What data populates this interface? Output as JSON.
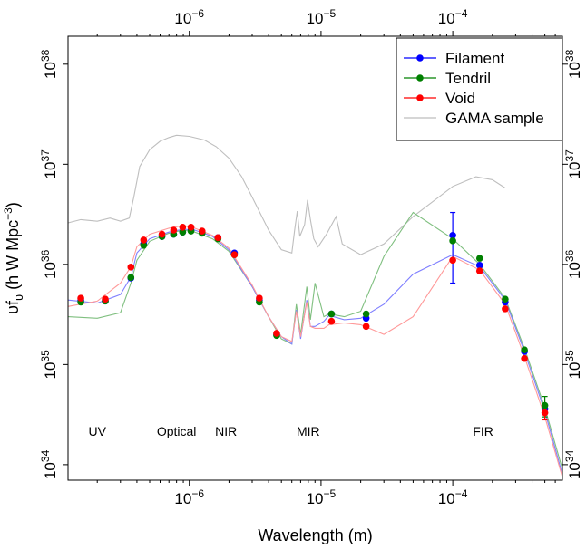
{
  "chart_data": {
    "type": "scatter",
    "title": "",
    "xlabel": "Wavelength (m)",
    "ylabel": "υf",
    "ylabel_sub": "υ",
    "ylabel_units": "(h W Mpc",
    "ylabel_units_exp": "−3",
    "ylabel_close": ")",
    "x_scale": "log",
    "y_scale": "log",
    "xlim": [
      1.2e-07,
      0.00068
    ],
    "ylim": [
      7e+33,
      1.9e+38
    ],
    "grid": false,
    "legend_position": "top-right",
    "x_ticks": [
      {
        "value": 1e-06,
        "base": "10",
        "exp": "−6"
      },
      {
        "value": 1e-05,
        "base": "10",
        "exp": "−5"
      },
      {
        "value": 0.0001,
        "base": "10",
        "exp": "−4"
      }
    ],
    "y_ticks": [
      {
        "value": 1e+34,
        "base": "10",
        "exp": "34"
      },
      {
        "value": 1e+35,
        "base": "10",
        "exp": "35"
      },
      {
        "value": 1e+36,
        "base": "10",
        "exp": "36"
      },
      {
        "value": 1e+37,
        "base": "10",
        "exp": "37"
      },
      {
        "value": 1e+38,
        "base": "10",
        "exp": "38"
      }
    ],
    "band_labels": [
      {
        "text": "UV",
        "x": 2e-07,
        "y": 1.95e+34
      },
      {
        "text": "Optical",
        "x": 8e-07,
        "y": 1.95e+34
      },
      {
        "text": "NIR",
        "x": 1.9e-06,
        "y": 1.95e+34
      },
      {
        "text": "MIR",
        "x": 8e-06,
        "y": 1.95e+34
      },
      {
        "text": "FIR",
        "x": 0.00017,
        "y": 1.95e+34
      }
    ],
    "series": [
      {
        "name": "Filament",
        "color": "#0000ff",
        "line_color": "#7f7fff",
        "points": [
          {
            "x": 1.5e-07,
            "y": 4.4e+35
          },
          {
            "x": 2.3e-07,
            "y": 4.3e+35
          },
          {
            "x": 3.6e-07,
            "y": 7.3e+35
          },
          {
            "x": 4.5e-07,
            "y": 1.6e+36
          },
          {
            "x": 6.2e-07,
            "y": 1.9e+36
          },
          {
            "x": 7.6e-07,
            "y": 2e+36
          },
          {
            "x": 8.9e-07,
            "y": 2.1e+36
          },
          {
            "x": 1.03e-06,
            "y": 2.2e+36
          },
          {
            "x": 1.25e-06,
            "y": 2.1e+36
          },
          {
            "x": 1.65e-06,
            "y": 1.85e+36
          },
          {
            "x": 2.2e-06,
            "y": 1.3e+36
          },
          {
            "x": 3.4e-06,
            "y": 4.4e+35
          },
          {
            "x": 4.6e-06,
            "y": 2e+35
          },
          {
            "x": 1.2e-05,
            "y": 3.2e+35
          },
          {
            "x": 2.2e-05,
            "y": 2.9e+35
          },
          {
            "x": 0.0001,
            "y": 1.95e+36,
            "err_lo": 6.5e+35,
            "err_hi": 3.3e+36
          },
          {
            "x": 0.00016,
            "y": 9.8e+35
          },
          {
            "x": 0.00025,
            "y": 4.2e+35
          },
          {
            "x": 0.00035,
            "y": 1.35e+35
          },
          {
            "x": 0.0005,
            "y": 3.6e+34
          }
        ],
        "line": [
          [
            1.2e-07,
            4.4e+35
          ],
          [
            2e-07,
            4.1e+35
          ],
          [
            3e-07,
            5e+35
          ],
          [
            3.6e-07,
            7.5e+35
          ],
          [
            4e-07,
            1.3e+36
          ],
          [
            5e-07,
            1.8e+36
          ],
          [
            7e-07,
            2.1e+36
          ],
          [
            9e-07,
            2.25e+36
          ],
          [
            1.1e-06,
            2.2e+36
          ],
          [
            1.5e-06,
            1.9e+36
          ],
          [
            2e-06,
            1.4e+36
          ],
          [
            3e-06,
            6e+35
          ],
          [
            4e-06,
            3e+35
          ],
          [
            5e-06,
            1.9e+35
          ],
          [
            6e-06,
            1.6e+35
          ],
          [
            6.5e-06,
            3.5e+35
          ],
          [
            7e-06,
            1.8e+35
          ],
          [
            7.8e-06,
            4.4e+35
          ],
          [
            8.3e-06,
            2.4e+35
          ],
          [
            9e-06,
            2.4e+35
          ],
          [
            1.05e-05,
            2.7e+35
          ],
          [
            1.15e-05,
            3.1e+35
          ],
          [
            1.5e-05,
            2.8e+35
          ],
          [
            2e-05,
            2.9e+35
          ],
          [
            3e-05,
            4e+35
          ],
          [
            5e-05,
            8e+35
          ],
          [
            0.0001,
            1.25e+36
          ],
          [
            0.00016,
            9.5e+35
          ],
          [
            0.00025,
            4.4e+35
          ],
          [
            0.00035,
            1.35e+35
          ],
          [
            0.0005,
            3.4e+34
          ],
          [
            0.00068,
            8e+33
          ]
        ]
      },
      {
        "name": "Tendril",
        "color": "#008000",
        "line_color": "#7fbf7f",
        "points": [
          {
            "x": 1.5e-07,
            "y": 4.2e+35
          },
          {
            "x": 2.3e-07,
            "y": 4.3e+35
          },
          {
            "x": 3.6e-07,
            "y": 7.4e+35
          },
          {
            "x": 4.5e-07,
            "y": 1.55e+36
          },
          {
            "x": 6.2e-07,
            "y": 1.9e+36
          },
          {
            "x": 7.6e-07,
            "y": 2e+36
          },
          {
            "x": 8.9e-07,
            "y": 2.1e+36
          },
          {
            "x": 1.03e-06,
            "y": 2.15e+36
          },
          {
            "x": 1.25e-06,
            "y": 2.05e+36
          },
          {
            "x": 1.65e-06,
            "y": 1.8e+36
          },
          {
            "x": 2.2e-06,
            "y": 1.25e+36
          },
          {
            "x": 3.4e-06,
            "y": 4.2e+35
          },
          {
            "x": 4.6e-06,
            "y": 1.95e+35
          },
          {
            "x": 1.2e-05,
            "y": 3.2e+35
          },
          {
            "x": 2.2e-05,
            "y": 3.2e+35
          },
          {
            "x": 0.0001,
            "y": 1.72e+36
          },
          {
            "x": 0.00016,
            "y": 1.15e+36
          },
          {
            "x": 0.00025,
            "y": 4.5e+35
          },
          {
            "x": 0.00035,
            "y": 1.4e+35
          },
          {
            "x": 0.0005,
            "y": 3.9e+34,
            "err_lo": 3e+34,
            "err_hi": 4.8e+34
          }
        ],
        "line": [
          [
            1.2e-07,
            3e+35
          ],
          [
            2e-07,
            2.9e+35
          ],
          [
            3e-07,
            3.3e+35
          ],
          [
            3.6e-07,
            6.5e+35
          ],
          [
            4e-07,
            1.1e+36
          ],
          [
            5e-07,
            1.7e+36
          ],
          [
            7e-07,
            2.05e+36
          ],
          [
            9e-07,
            2.2e+36
          ],
          [
            1.1e-06,
            2.1e+36
          ],
          [
            1.5e-06,
            1.8e+36
          ],
          [
            2e-06,
            1.35e+36
          ],
          [
            3e-06,
            6e+35
          ],
          [
            4e-06,
            3e+35
          ],
          [
            5e-06,
            1.8e+35
          ],
          [
            6e-06,
            1.6e+35
          ],
          [
            6.5e-06,
            4e+35
          ],
          [
            7e-06,
            2e+35
          ],
          [
            7.8e-06,
            6e+35
          ],
          [
            8.3e-06,
            2.8e+35
          ],
          [
            9e-06,
            6.5e+35
          ],
          [
            1.05e-05,
            3e+35
          ],
          [
            1.15e-05,
            3.2e+35
          ],
          [
            1.5e-05,
            3e+35
          ],
          [
            2e-05,
            3.4e+35
          ],
          [
            3e-05,
            1.2e+36
          ],
          [
            5e-05,
            3.3e+36
          ],
          [
            0.0001,
            1.8e+36
          ],
          [
            0.00016,
            1e+36
          ],
          [
            0.00025,
            4.6e+35
          ],
          [
            0.00035,
            1.45e+35
          ],
          [
            0.0005,
            3.7e+34
          ],
          [
            0.00068,
            9e+33
          ]
        ]
      },
      {
        "name": "Void",
        "color": "#ff0000",
        "line_color": "#ff9999",
        "points": [
          {
            "x": 1.5e-07,
            "y": 4.6e+35
          },
          {
            "x": 2.3e-07,
            "y": 4.5e+35
          },
          {
            "x": 3.6e-07,
            "y": 9.4e+35
          },
          {
            "x": 4.5e-07,
            "y": 1.75e+36
          },
          {
            "x": 6.2e-07,
            "y": 2e+36
          },
          {
            "x": 7.6e-07,
            "y": 2.2e+36
          },
          {
            "x": 8.9e-07,
            "y": 2.35e+36
          },
          {
            "x": 1.03e-06,
            "y": 2.35e+36
          },
          {
            "x": 1.25e-06,
            "y": 2.15e+36
          },
          {
            "x": 1.65e-06,
            "y": 1.85e+36
          },
          {
            "x": 2.2e-06,
            "y": 1.25e+36
          },
          {
            "x": 3.4e-06,
            "y": 4.6e+35
          },
          {
            "x": 4.6e-06,
            "y": 2.05e+35
          },
          {
            "x": 1.2e-05,
            "y": 2.7e+35
          },
          {
            "x": 2.2e-05,
            "y": 2.4e+35
          },
          {
            "x": 0.0001,
            "y": 1.1e+36
          },
          {
            "x": 0.00016,
            "y": 8.6e+35
          },
          {
            "x": 0.00025,
            "y": 3.6e+35
          },
          {
            "x": 0.00035,
            "y": 1.15e+35
          },
          {
            "x": 0.0005,
            "y": 3.3e+34,
            "err_lo": 2.8e+34,
            "err_hi": 3.9e+34
          }
        ],
        "line": [
          [
            1.2e-07,
            3.8e+35
          ],
          [
            2e-07,
            4.3e+35
          ],
          [
            3e-07,
            6.5e+35
          ],
          [
            3.6e-07,
            9.5e+35
          ],
          [
            4e-07,
            1.5e+36
          ],
          [
            5e-07,
            2e+36
          ],
          [
            7e-07,
            2.3e+36
          ],
          [
            9e-07,
            2.45e+36
          ],
          [
            1.1e-06,
            2.3e+36
          ],
          [
            1.5e-06,
            1.95e+36
          ],
          [
            2e-06,
            1.45e+36
          ],
          [
            3e-06,
            6.2e+35
          ],
          [
            4e-06,
            3e+35
          ],
          [
            5e-06,
            1.9e+35
          ],
          [
            6e-06,
            1.7e+35
          ],
          [
            6.5e-06,
            3.4e+35
          ],
          [
            7e-06,
            1.9e+35
          ],
          [
            7.8e-06,
            4.2e+35
          ],
          [
            8.3e-06,
            2.4e+35
          ],
          [
            9e-06,
            2.3e+35
          ],
          [
            1.05e-05,
            2.3e+35
          ],
          [
            1.15e-05,
            2.5e+35
          ],
          [
            1.5e-05,
            2.6e+35
          ],
          [
            2e-05,
            2.5e+35
          ],
          [
            3e-05,
            2e+35
          ],
          [
            5e-05,
            3e+35
          ],
          [
            0.0001,
            1.2e+36
          ],
          [
            0.00016,
            8.8e+35
          ],
          [
            0.00025,
            4e+35
          ],
          [
            0.00035,
            1.2e+35
          ],
          [
            0.0005,
            3e+34
          ],
          [
            0.00068,
            7.5e+33
          ]
        ]
      },
      {
        "name": "GAMA sample",
        "color": "#bebebe",
        "line_color": "#bebebe",
        "points": [],
        "line": [
          [
            1.2e-07,
            2.6e+36
          ],
          [
            1.5e-07,
            2.8e+36
          ],
          [
            2e-07,
            2.7e+36
          ],
          [
            2.5e-07,
            2.9e+36
          ],
          [
            3e-07,
            2.7e+36
          ],
          [
            3.5e-07,
            2.9e+36
          ],
          [
            3.8e-07,
            4.8e+36
          ],
          [
            4.2e-07,
            9.5e+36
          ],
          [
            5e-07,
            1.4e+37
          ],
          [
            6e-07,
            1.7e+37
          ],
          [
            7e-07,
            1.85e+37
          ],
          [
            8e-07,
            1.95e+37
          ],
          [
            1e-06,
            1.9e+37
          ],
          [
            1.3e-06,
            1.75e+37
          ],
          [
            1.6e-06,
            1.5e+37
          ],
          [
            2e-06,
            1.15e+37
          ],
          [
            2.5e-06,
            7.5e+36
          ],
          [
            3e-06,
            4.7e+36
          ],
          [
            4e-06,
            2.2e+36
          ],
          [
            5e-06,
            1.4e+36
          ],
          [
            6e-06,
            1.3e+36
          ],
          [
            6.3e-06,
            2.2e+36
          ],
          [
            6.6e-06,
            3.4e+36
          ],
          [
            6.9e-06,
            1.9e+36
          ],
          [
            7.5e-06,
            2.5e+36
          ],
          [
            7.9e-06,
            4.4e+36
          ],
          [
            8.3e-06,
            2.8e+36
          ],
          [
            8.8e-06,
            1.8e+36
          ],
          [
            9.5e-06,
            1.5e+36
          ],
          [
            1.1e-05,
            2e+36
          ],
          [
            1.3e-05,
            3e+36
          ],
          [
            1.45e-05,
            1.6e+36
          ],
          [
            2e-05,
            1.25e+36
          ],
          [
            3e-05,
            1.6e+36
          ],
          [
            5e-05,
            3e+36
          ],
          [
            0.0001,
            6e+36
          ],
          [
            0.00015,
            7.5e+36
          ],
          [
            0.0002,
            7e+36
          ],
          [
            0.00025,
            5.8e+36
          ]
        ]
      }
    ]
  }
}
